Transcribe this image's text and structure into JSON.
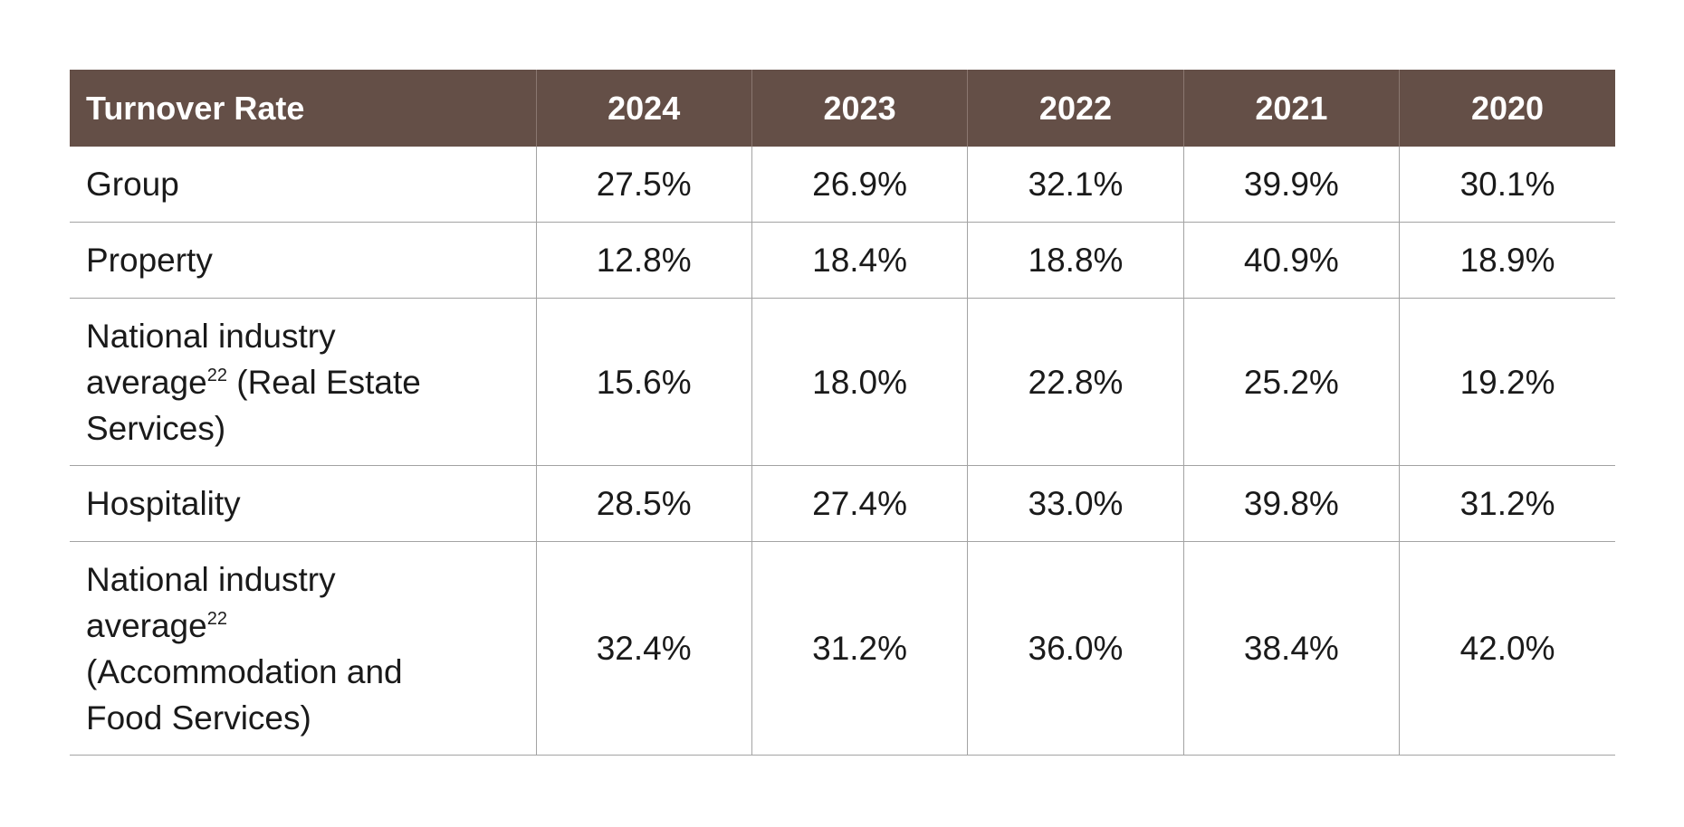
{
  "table": {
    "header": {
      "label": "Turnover Rate",
      "years": [
        "2024",
        "2023",
        "2022",
        "2021",
        "2020"
      ]
    },
    "rows": [
      {
        "label": "Group",
        "values": [
          "27.5%",
          "26.9%",
          "32.1%",
          "39.9%",
          "30.1%"
        ]
      },
      {
        "label": "Property",
        "values": [
          "12.8%",
          "18.4%",
          "18.8%",
          "40.9%",
          "18.9%"
        ]
      },
      {
        "label_line1": "National industry",
        "label_word": "average",
        "footnote": "22",
        "label_rest_a": " (Real Estate",
        "label_rest_b": "Services)",
        "values": [
          "15.6%",
          "18.0%",
          "22.8%",
          "25.2%",
          "19.2%"
        ]
      },
      {
        "label": "Hospitality",
        "values": [
          "28.5%",
          "27.4%",
          "33.0%",
          "39.8%",
          "31.2%"
        ]
      },
      {
        "label_line1": "National industry",
        "label_word": "average",
        "footnote": "22",
        "label_rest_a": "(Accommodation and",
        "label_rest_b": "Food Services)",
        "values": [
          "32.4%",
          "31.2%",
          "36.0%",
          "38.4%",
          "42.0%"
        ]
      }
    ]
  }
}
